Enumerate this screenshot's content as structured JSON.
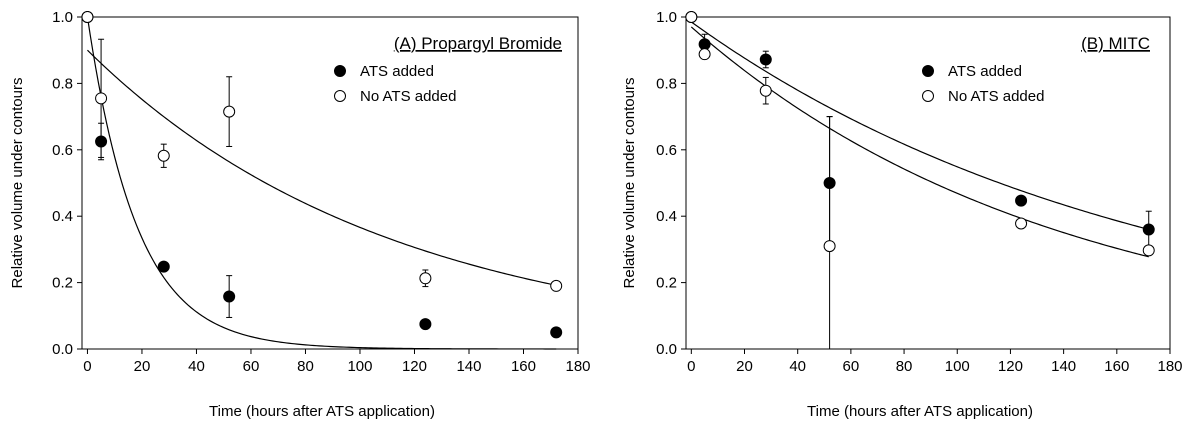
{
  "chart_data": [
    {
      "type": "scatter",
      "title": "(A) Propargyl Bromide",
      "xlabel": "Time (hours after ATS application)",
      "ylabel": "Relative volume under contours",
      "xlim": [
        -2,
        180
      ],
      "ylim": [
        0,
        1.0
      ],
      "xticks": [
        "0",
        "20",
        "40",
        "60",
        "80",
        "100",
        "120",
        "140",
        "160",
        "180"
      ],
      "yticks": [
        "0.0",
        "0.2",
        "0.4",
        "0.6",
        "0.8",
        "1.0"
      ],
      "legend_position": "top-right",
      "series": [
        {
          "name": "ATS added",
          "marker": "filled-circle",
          "color": "#000000",
          "x": [
            0,
            5,
            28,
            52,
            124,
            172
          ],
          "y": [
            1.0,
            0.625,
            0.248,
            0.158,
            0.075,
            0.05
          ],
          "err": [
            0,
            0.055,
            0,
            0.063,
            0,
            0
          ],
          "fit": {
            "model": "exponential decay",
            "a": 1.0,
            "k": 0.0548
          }
        },
        {
          "name": "No ATS added",
          "marker": "open-circle",
          "color": "#000000",
          "x": [
            0,
            5,
            28,
            52,
            124,
            172
          ],
          "y": [
            1.0,
            0.755,
            0.582,
            0.715,
            0.213,
            0.19
          ],
          "err": [
            0,
            0.178,
            0.035,
            0.105,
            0.025,
            0
          ],
          "fit": {
            "model": "exponential decay",
            "a": 0.9,
            "k": 0.00899
          }
        }
      ]
    },
    {
      "type": "scatter",
      "title": "(B) MITC",
      "xlabel": "Time (hours after ATS application)",
      "ylabel": "Relative volume under contours",
      "xlim": [
        -2,
        180
      ],
      "ylim": [
        0,
        1.0
      ],
      "xticks": [
        "0",
        "20",
        "40",
        "60",
        "80",
        "100",
        "120",
        "140",
        "160",
        "180"
      ],
      "yticks": [
        "0.0",
        "0.2",
        "0.4",
        "0.6",
        "0.8",
        "1.0"
      ],
      "legend_position": "top-right",
      "series": [
        {
          "name": "ATS added",
          "marker": "filled-circle",
          "color": "#000000",
          "x": [
            0,
            5,
            28,
            52,
            124,
            172
          ],
          "y": [
            1.0,
            0.918,
            0.872,
            0.5,
            0.447,
            0.36
          ],
          "err": [
            0,
            0.03,
            0.025,
            0.2,
            0,
            0.055
          ],
          "fit": {
            "model": "exponential decay",
            "a": 0.985,
            "k": 0.00585
          }
        },
        {
          "name": "No ATS added",
          "marker": "open-circle",
          "color": "#000000",
          "x": [
            0,
            5,
            28,
            52,
            124,
            172
          ],
          "y": [
            1.0,
            0.888,
            0.778,
            0.31,
            0.378,
            0.297
          ],
          "err": [
            0,
            0,
            0.04,
            0.39,
            0,
            0
          ],
          "fit": {
            "model": "exponential decay",
            "a": 0.97,
            "k": 0.00727
          }
        }
      ]
    }
  ]
}
